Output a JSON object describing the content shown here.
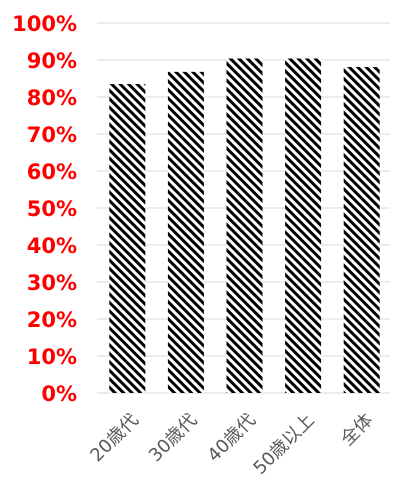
{
  "chart_data": {
    "type": "bar",
    "categories": [
      "20歳代",
      "30歳代",
      "40歳代",
      "50歳以上",
      "全体"
    ],
    "values": [
      83.5,
      86.8,
      90.4,
      90.4,
      88.1
    ],
    "ylim": [
      0,
      100
    ],
    "yticks": [
      "0%",
      "10%",
      "20%",
      "30%",
      "40%",
      "50%",
      "60%",
      "70%",
      "80%",
      "90%",
      "100%"
    ],
    "grid": true,
    "legend": "none",
    "colors": {
      "bar_pattern_dark": "#000000",
      "bar_pattern_light": "#ffffff",
      "ytick_label": "#ff0000",
      "xtick_label": "#595959",
      "gridline": "#d9d9d9"
    },
    "bar_pattern": "diagonal-stripes"
  }
}
